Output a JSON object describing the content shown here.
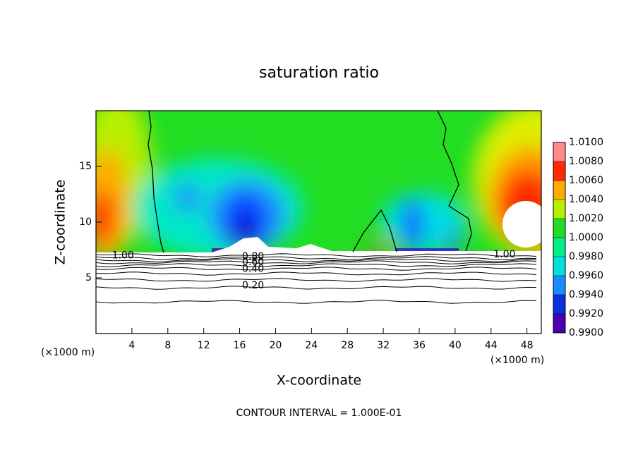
{
  "chart_data": {
    "type": "contour",
    "title": "saturation ratio",
    "x_label": "X-coordinate",
    "y_label": "Z-coordinate",
    "x_unit_label": "(×1000 m)",
    "footer": "CONTOUR INTERVAL = 1.000E-01",
    "xlim": [
      0,
      49.6
    ],
    "xticks": [
      4,
      8,
      12,
      16,
      20,
      24,
      28,
      32,
      36,
      40,
      44,
      48
    ],
    "ylim": [
      0,
      20
    ],
    "yticks": [
      5,
      10,
      15
    ],
    "contour_labels": [
      {
        "value": 1.0,
        "label": "1.00",
        "x": 3,
        "y": 7.0
      },
      {
        "value": 0.8,
        "label": "0.80",
        "x": 17.5,
        "y": 6.9
      },
      {
        "value": 0.6,
        "label": "0.60",
        "x": 17.5,
        "y": 6.4
      },
      {
        "value": 0.4,
        "label": "0.40",
        "x": 17.5,
        "y": 5.8
      },
      {
        "value": 0.2,
        "label": "0.20",
        "x": 17.5,
        "y": 4.3
      },
      {
        "value": 1.0,
        "label": "1.00",
        "x": 45.5,
        "y": 7.1
      }
    ],
    "colorbar": {
      "lim": [
        0.99,
        1.01
      ],
      "ticks": [
        {
          "value": 0.99,
          "label": "0.9900"
        },
        {
          "value": 0.992,
          "label": "0.9920"
        },
        {
          "value": 0.994,
          "label": "0.9940"
        },
        {
          "value": 0.996,
          "label": "0.9960"
        },
        {
          "value": 0.998,
          "label": "0.9980"
        },
        {
          "value": 1.0,
          "label": "1.0000"
        },
        {
          "value": 1.002,
          "label": "1.0020"
        },
        {
          "value": 1.004,
          "label": "1.0040"
        },
        {
          "value": 1.006,
          "label": "1.0060"
        },
        {
          "value": 1.008,
          "label": "1.0080"
        },
        {
          "value": 1.01,
          "label": "1.0100"
        }
      ],
      "colors": [
        "#4a00b0",
        "#0a30e0",
        "#1a8cff",
        "#00e0e0",
        "#00ee88",
        "#22dd22",
        "#b8ee00",
        "#ffaa00",
        "#ff2a00",
        "#ff8a8a"
      ]
    }
  }
}
